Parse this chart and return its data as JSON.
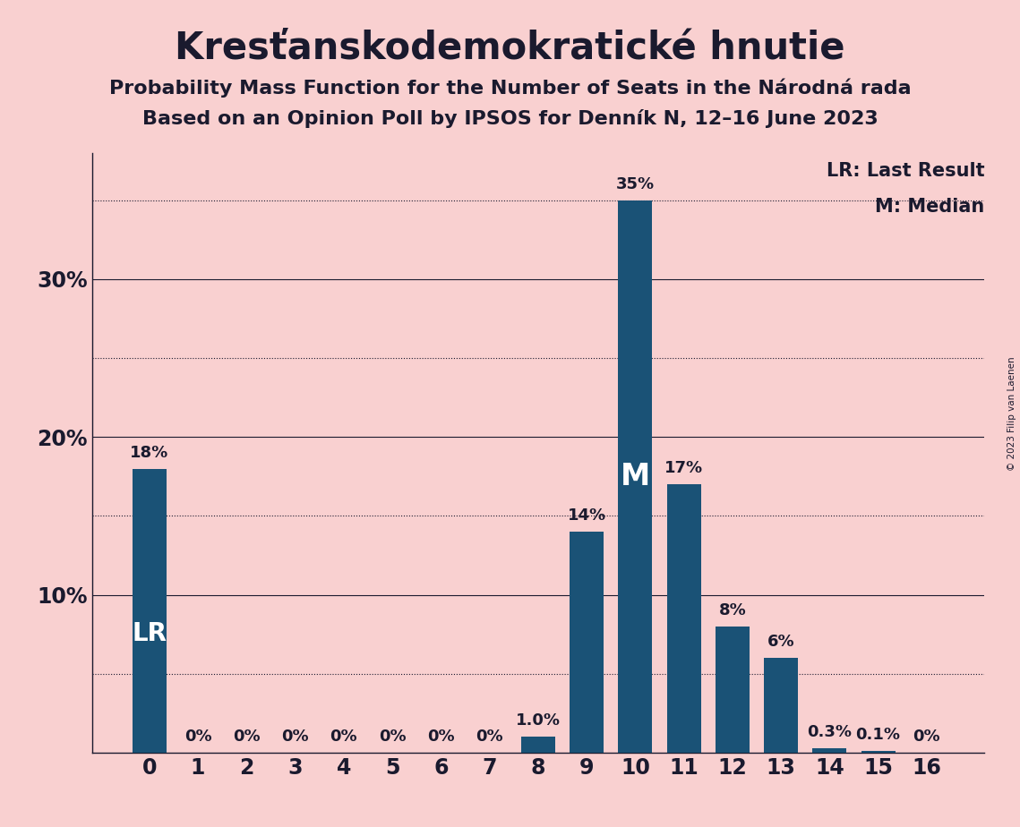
{
  "title": "Kresťanskodemokratické hnutie",
  "subtitle1": "Probability Mass Function for the Number of Seats in the Národná rada",
  "subtitle2": "Based on an Opinion Poll by IPSOS for Denník N, 12–16 June 2023",
  "copyright": "© 2023 Filip van Laenen",
  "categories": [
    0,
    1,
    2,
    3,
    4,
    5,
    6,
    7,
    8,
    9,
    10,
    11,
    12,
    13,
    14,
    15,
    16
  ],
  "values": [
    18,
    0,
    0,
    0,
    0,
    0,
    0,
    0,
    1.0,
    14,
    35,
    17,
    8,
    6,
    0.3,
    0.1,
    0
  ],
  "bar_labels": [
    "18%",
    "0%",
    "0%",
    "0%",
    "0%",
    "0%",
    "0%",
    "0%",
    "1.0%",
    "14%",
    "35%",
    "17%",
    "8%",
    "6%",
    "0.3%",
    "0.1%",
    "0%"
  ],
  "bar_color": "#1a5276",
  "background_color": "#f9d0d0",
  "lr_bar": 0,
  "median_bar": 10,
  "solid_gridlines": [
    10,
    20,
    30
  ],
  "dotted_gridlines": [
    5,
    15,
    25,
    35
  ],
  "ytick_positions": [
    10,
    20,
    30
  ],
  "ytick_labels": [
    "10%",
    "20%",
    "30%"
  ],
  "ylim": [
    0,
    38
  ],
  "legend_lr": "LR: Last Result",
  "legend_m": "M: Median",
  "title_fontsize": 30,
  "subtitle_fontsize": 16,
  "bar_label_fontsize": 13,
  "axis_label_fontsize": 17,
  "lr_text_color": "#ffffff",
  "m_text_color": "#ffffff",
  "text_color": "#1a1a2e"
}
